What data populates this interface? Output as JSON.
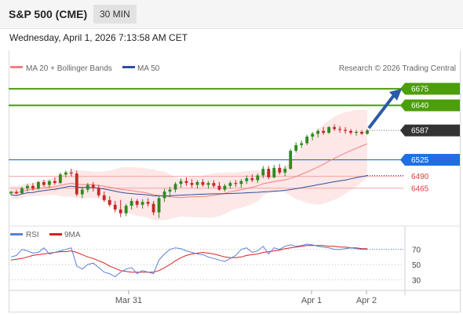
{
  "header": {
    "title": "S&P 500 (CME)",
    "timeframe": "30 MIN",
    "datetime": "Wednesday, April 1, 2026 7:13:58 AM CET"
  },
  "legend": {
    "ma20_bb": "MA 20 + Bollinger Bands",
    "ma50": "MA 50",
    "credit": "Research © 2026 Trading Central",
    "rsi": "RSI",
    "ma9": "9MA"
  },
  "colors": {
    "green": "#4c9e0b",
    "blue": "#1f6fe3",
    "dark": "#333333",
    "red": "#e03b3b",
    "bb_fill": "#fde3e3",
    "ma20": "#f28080",
    "ma50": "#2d4f9c",
    "rsi": "#5b7fd8",
    "ma9": "#d62020",
    "candle_up": "#2e8b1f",
    "candle_down": "#c62828"
  },
  "chart_data": [
    {
      "type": "candlestick",
      "ylim": [
        6390,
        6700
      ],
      "x_ticks": [
        "Mar 31",
        "Apr 1",
        "Apr 2"
      ],
      "levels": [
        {
          "value": 6675,
          "label": "6675",
          "style": "resistance"
        },
        {
          "value": 6640,
          "label": "6640",
          "style": "resistance"
        },
        {
          "value": 6587,
          "label": "6587",
          "style": "last"
        },
        {
          "value": 6525,
          "label": "6525",
          "style": "pivot"
        },
        {
          "value": 6490,
          "label": "6490",
          "style": "support"
        },
        {
          "value": 6465,
          "label": "6465",
          "style": "support"
        }
      ],
      "forecast_arrow": {
        "from": 6587,
        "to": 6675
      },
      "candles": [
        [
          6454,
          6460,
          6450,
          6457
        ],
        [
          6457,
          6462,
          6452,
          6454
        ],
        [
          6454,
          6468,
          6452,
          6465
        ],
        [
          6465,
          6474,
          6458,
          6470
        ],
        [
          6470,
          6476,
          6460,
          6464
        ],
        [
          6464,
          6480,
          6462,
          6478
        ],
        [
          6478,
          6483,
          6468,
          6472
        ],
        [
          6472,
          6482,
          6466,
          6480
        ],
        [
          6480,
          6488,
          6472,
          6476
        ],
        [
          6476,
          6498,
          6474,
          6494
        ],
        [
          6494,
          6502,
          6488,
          6498
        ],
        [
          6498,
          6506,
          6490,
          6496
        ],
        [
          6496,
          6502,
          6448,
          6452
        ],
        [
          6452,
          6468,
          6444,
          6462
        ],
        [
          6462,
          6476,
          6456,
          6472
        ],
        [
          6472,
          6478,
          6458,
          6466
        ],
        [
          6466,
          6472,
          6446,
          6450
        ],
        [
          6450,
          6458,
          6436,
          6440
        ],
        [
          6440,
          6448,
          6426,
          6430
        ],
        [
          6430,
          6438,
          6414,
          6420
        ],
        [
          6420,
          6440,
          6404,
          6412
        ],
        [
          6412,
          6432,
          6406,
          6428
        ],
        [
          6428,
          6444,
          6420,
          6438
        ],
        [
          6438,
          6442,
          6424,
          6430
        ],
        [
          6430,
          6442,
          6422,
          6436
        ],
        [
          6436,
          6444,
          6426,
          6432
        ],
        [
          6432,
          6438,
          6408,
          6414
        ],
        [
          6414,
          6448,
          6402,
          6444
        ],
        [
          6444,
          6464,
          6436,
          6458
        ],
        [
          6458,
          6468,
          6446,
          6462
        ],
        [
          6462,
          6478,
          6456,
          6474
        ],
        [
          6474,
          6486,
          6466,
          6480
        ],
        [
          6480,
          6488,
          6470,
          6476
        ],
        [
          6476,
          6484,
          6466,
          6472
        ],
        [
          6472,
          6482,
          6464,
          6478
        ],
        [
          6478,
          6484,
          6468,
          6472
        ],
        [
          6472,
          6480,
          6464,
          6476
        ],
        [
          6476,
          6482,
          6466,
          6470
        ],
        [
          6470,
          6478,
          6460,
          6462
        ],
        [
          6462,
          6474,
          6458,
          6470
        ],
        [
          6470,
          6480,
          6464,
          6476
        ],
        [
          6476,
          6482,
          6468,
          6474
        ],
        [
          6474,
          6484,
          6466,
          6480
        ],
        [
          6480,
          6492,
          6474,
          6486
        ],
        [
          6486,
          6494,
          6478,
          6482
        ],
        [
          6482,
          6496,
          6476,
          6492
        ],
        [
          6492,
          6512,
          6486,
          6506
        ],
        [
          6506,
          6512,
          6484,
          6488
        ],
        [
          6488,
          6514,
          6486,
          6508
        ],
        [
          6508,
          6516,
          6494,
          6498
        ],
        [
          6498,
          6512,
          6490,
          6506
        ],
        [
          6506,
          6548,
          6504,
          6544
        ],
        [
          6544,
          6562,
          6540,
          6556
        ],
        [
          6556,
          6566,
          6550,
          6560
        ],
        [
          6560,
          6578,
          6556,
          6574
        ],
        [
          6574,
          6584,
          6566,
          6580
        ],
        [
          6580,
          6590,
          6572,
          6586
        ],
        [
          6586,
          6594,
          6578,
          6582
        ],
        [
          6582,
          6596,
          6580,
          6594
        ],
        [
          6594,
          6600,
          6586,
          6590
        ],
        [
          6590,
          6596,
          6582,
          6588
        ],
        [
          6588,
          6594,
          6580,
          6586
        ],
        [
          6586,
          6590,
          6578,
          6582
        ],
        [
          6582,
          6588,
          6576,
          6584
        ],
        [
          6584,
          6588,
          6578,
          6580
        ],
        [
          6580,
          6590,
          6578,
          6587
        ]
      ]
    },
    {
      "type": "line",
      "yticks": [
        70,
        50,
        30
      ],
      "ylim": [
        20,
        80
      ],
      "series": [
        {
          "name": "RSI",
          "values": [
            60,
            62,
            70,
            68,
            65,
            66,
            72,
            64,
            66,
            68,
            70,
            72,
            48,
            44,
            50,
            52,
            46,
            40,
            38,
            34,
            40,
            44,
            46,
            38,
            42,
            40,
            38,
            56,
            64,
            70,
            72,
            71,
            68,
            66,
            64,
            63,
            60,
            58,
            56,
            54,
            58,
            62,
            70,
            72,
            66,
            68,
            74,
            64,
            72,
            70,
            74,
            76,
            74,
            75,
            77,
            76,
            74,
            73,
            72,
            70,
            70,
            71,
            72,
            71,
            70,
            70
          ]
        },
        {
          "name": "9MA",
          "values": [
            56,
            57,
            58,
            60,
            62,
            63,
            64,
            65,
            66,
            67,
            67,
            68,
            66,
            63,
            60,
            58,
            55,
            52,
            48,
            45,
            42,
            41,
            40,
            40,
            40,
            40,
            40,
            42,
            46,
            50,
            55,
            59,
            62,
            64,
            65,
            66,
            65,
            64,
            62,
            60,
            59,
            59,
            60,
            62,
            63,
            64,
            66,
            67,
            68,
            69,
            71,
            72,
            73,
            74,
            75,
            75,
            75,
            75,
            74,
            74,
            73,
            73,
            72,
            72,
            71,
            71
          ]
        }
      ]
    }
  ]
}
